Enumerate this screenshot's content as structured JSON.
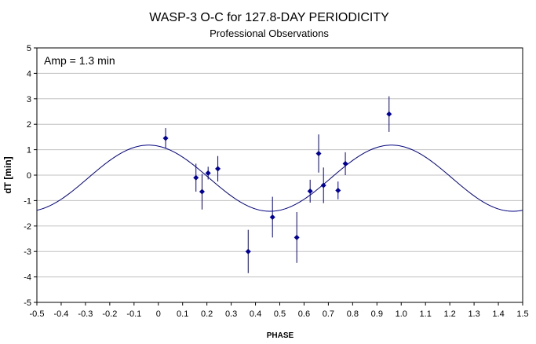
{
  "chart_data": {
    "type": "scatter",
    "title": "WASP-3 O-C for 127.8-DAY PERIODICITY",
    "subtitle": "Professional Observations",
    "xlabel": "PHASE",
    "ylabel": "dT [min]",
    "xlim": [
      -0.5,
      1.5
    ],
    "ylim": [
      -5,
      5
    ],
    "x_ticks": [
      "-0.5",
      "-0.4",
      "-0.3",
      "-0.2",
      "-0.1",
      "0",
      "0.1",
      "0.2",
      "0.3",
      "0.4",
      "0.5",
      "0.6",
      "0.7",
      "0.8",
      "0.9",
      "1.0",
      "1.1",
      "1.2",
      "1.3",
      "1.4",
      "1.5"
    ],
    "y_ticks": [
      "5",
      "4",
      "3",
      "2",
      "1",
      "0",
      "-1",
      "-2",
      "-3",
      "-4",
      "-5"
    ],
    "grid": "horizontal",
    "annotation": "Amp = 1.3 min",
    "colors": {
      "points": "#000099",
      "errorbars": "#000099",
      "curve": "#000080",
      "grid": "#c0c0c0"
    },
    "points": [
      {
        "x": 0.03,
        "y": 1.45,
        "err": 0.4
      },
      {
        "x": 0.155,
        "y": -0.1,
        "err": 0.55
      },
      {
        "x": 0.18,
        "y": -0.65,
        "err": 0.7
      },
      {
        "x": 0.205,
        "y": 0.08,
        "err": 0.25
      },
      {
        "x": 0.245,
        "y": 0.25,
        "err": 0.5
      },
      {
        "x": 0.37,
        "y": -3.0,
        "err": 0.85
      },
      {
        "x": 0.47,
        "y": -1.65,
        "err": 0.8
      },
      {
        "x": 0.57,
        "y": -2.45,
        "err": 1.0
      },
      {
        "x": 0.625,
        "y": -0.63,
        "err": 0.45
      },
      {
        "x": 0.66,
        "y": 0.85,
        "err": 0.75
      },
      {
        "x": 0.68,
        "y": -0.4,
        "err": 0.7
      },
      {
        "x": 0.74,
        "y": -0.6,
        "err": 0.35
      },
      {
        "x": 0.77,
        "y": 0.45,
        "err": 0.45
      },
      {
        "x": 0.95,
        "y": 2.4,
        "err": 0.7
      }
    ],
    "model_curve": {
      "type": "sine",
      "amplitude": 1.3,
      "offset": -0.12,
      "peak_phase": -0.04,
      "period": 1.0
    }
  }
}
